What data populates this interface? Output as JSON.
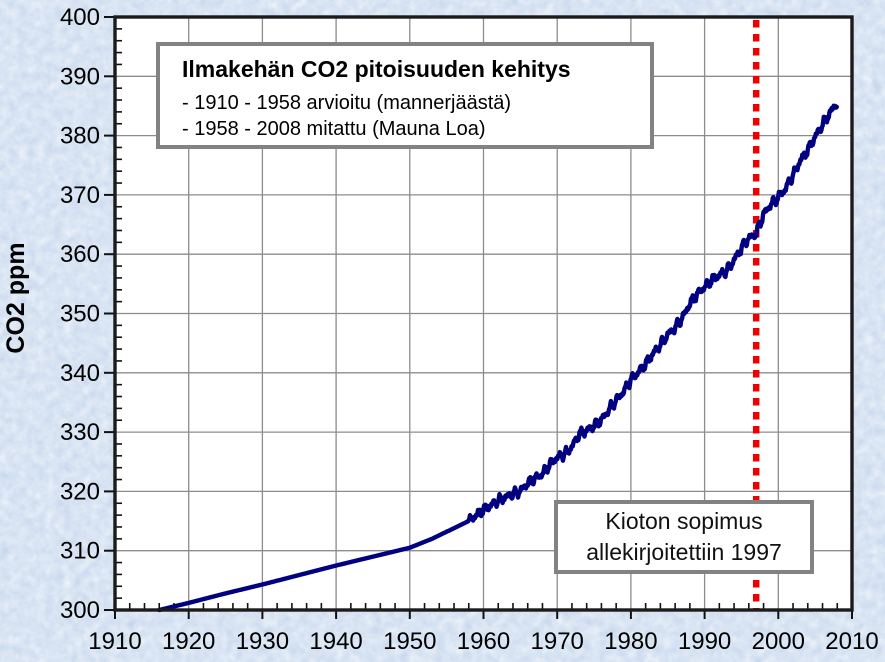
{
  "page": {
    "background_color": "#cbdcef",
    "plot_background": "#ffffff",
    "grid_color": "#8c8c8c",
    "frame_color": "#1b1b1b"
  },
  "title_box": {
    "title": "Ilmakehän CO2 pitoisuuden kehitys",
    "line1": "- 1910 - 1958 arvioitu (mannerjäästä)",
    "line2": "- 1958 - 2008 mitattu (Mauna Loa)"
  },
  "annotation_box": {
    "line1": "Kioton sopimus",
    "line2": "allekirjoitettiin 1997"
  },
  "chart_data": {
    "type": "line",
    "title": "Ilmakehän CO2 pitoisuuden kehitys",
    "xlabel": "",
    "ylabel": "CO2 ppm",
    "xlim": [
      1910,
      2010
    ],
    "ylim": [
      300,
      400
    ],
    "x_ticks": [
      1910,
      1920,
      1930,
      1940,
      1950,
      1960,
      1970,
      1980,
      1990,
      2000,
      2010
    ],
    "y_ticks": [
      300,
      310,
      320,
      330,
      340,
      350,
      360,
      370,
      380,
      390,
      400
    ],
    "minor_x_step": 2,
    "minor_y_step": 2,
    "grid": true,
    "legend": "none",
    "series": [
      {
        "name": "CO2 ppm",
        "color": "#000080",
        "noisy_from": 1958,
        "points": [
          [
            1916,
            300.0
          ],
          [
            1920,
            301.2
          ],
          [
            1925,
            302.8
          ],
          [
            1930,
            304.3
          ],
          [
            1935,
            305.9
          ],
          [
            1940,
            307.5
          ],
          [
            1945,
            309.0
          ],
          [
            1950,
            310.5
          ],
          [
            1953,
            312.0
          ],
          [
            1956,
            313.8
          ],
          [
            1958,
            315.0
          ],
          [
            1959,
            316.0
          ],
          [
            1960,
            316.9
          ],
          [
            1961,
            317.6
          ],
          [
            1962,
            318.5
          ],
          [
            1963,
            319.0
          ],
          [
            1964,
            319.6
          ],
          [
            1965,
            320.0
          ],
          [
            1966,
            321.4
          ],
          [
            1967,
            322.2
          ],
          [
            1968,
            323.0
          ],
          [
            1969,
            324.6
          ],
          [
            1970,
            325.7
          ],
          [
            1971,
            326.3
          ],
          [
            1972,
            327.5
          ],
          [
            1973,
            329.7
          ],
          [
            1974,
            330.2
          ],
          [
            1975,
            331.1
          ],
          [
            1976,
            332.0
          ],
          [
            1977,
            333.8
          ],
          [
            1978,
            335.4
          ],
          [
            1979,
            336.8
          ],
          [
            1980,
            338.8
          ],
          [
            1981,
            340.1
          ],
          [
            1982,
            341.5
          ],
          [
            1983,
            343.2
          ],
          [
            1984,
            344.8
          ],
          [
            1985,
            346.4
          ],
          [
            1986,
            347.6
          ],
          [
            1987,
            349.3
          ],
          [
            1988,
            351.7
          ],
          [
            1989,
            353.2
          ],
          [
            1990,
            354.5
          ],
          [
            1991,
            355.7
          ],
          [
            1992,
            356.5
          ],
          [
            1993,
            357.2
          ],
          [
            1994,
            359.0
          ],
          [
            1995,
            361.0
          ],
          [
            1996,
            362.7
          ],
          [
            1997,
            363.5
          ],
          [
            1998,
            366.7
          ],
          [
            1999,
            368.4
          ],
          [
            2000,
            369.6
          ],
          [
            2001,
            371.1
          ],
          [
            2002,
            373.3
          ],
          [
            2003,
            375.8
          ],
          [
            2004,
            377.5
          ],
          [
            2005,
            379.8
          ],
          [
            2006,
            381.9
          ],
          [
            2007,
            383.8
          ],
          [
            2008,
            385.6
          ]
        ]
      }
    ],
    "event_line": {
      "x": 1997,
      "color": "#ee0000",
      "style": "dotted",
      "label": "Kioton sopimus allekirjoitettiin 1997"
    }
  }
}
